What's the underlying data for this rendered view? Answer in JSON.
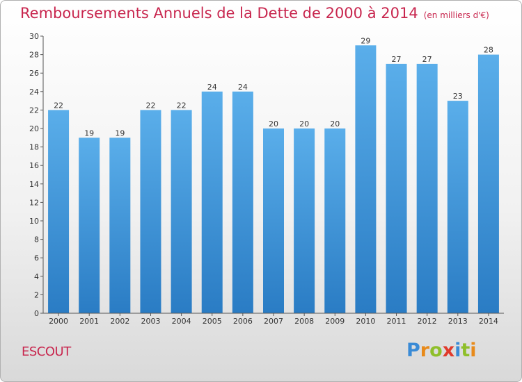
{
  "title": "Remboursements Annuels de la Dette de 2000 à 2014",
  "unit_note": "(en milliers d'€)",
  "commune": "ESCOUT",
  "logo": {
    "letters": [
      "P",
      "r",
      "o",
      "x",
      "i",
      "t",
      "i"
    ]
  },
  "colors": {
    "title": "#c8264e",
    "bar_top": "#5aaeea",
    "bar_bottom": "#2a7cc4",
    "axis": "#555555"
  },
  "chart_data": {
    "type": "bar",
    "title": "Remboursements Annuels de la Dette de 2000 à 2014",
    "xlabel": "",
    "ylabel": "",
    "categories": [
      "2000",
      "2001",
      "2002",
      "2003",
      "2004",
      "2005",
      "2006",
      "2007",
      "2008",
      "2009",
      "2010",
      "2011",
      "2012",
      "2013",
      "2014"
    ],
    "values": [
      22,
      19,
      19,
      22,
      22,
      24,
      24,
      20,
      20,
      20,
      29,
      27,
      27,
      23,
      28
    ],
    "ylim": [
      0,
      30
    ],
    "yticks": [
      0,
      2,
      4,
      6,
      8,
      10,
      12,
      14,
      16,
      18,
      20,
      22,
      24,
      26,
      28,
      30
    ],
    "grid": false,
    "data_labels": true
  }
}
